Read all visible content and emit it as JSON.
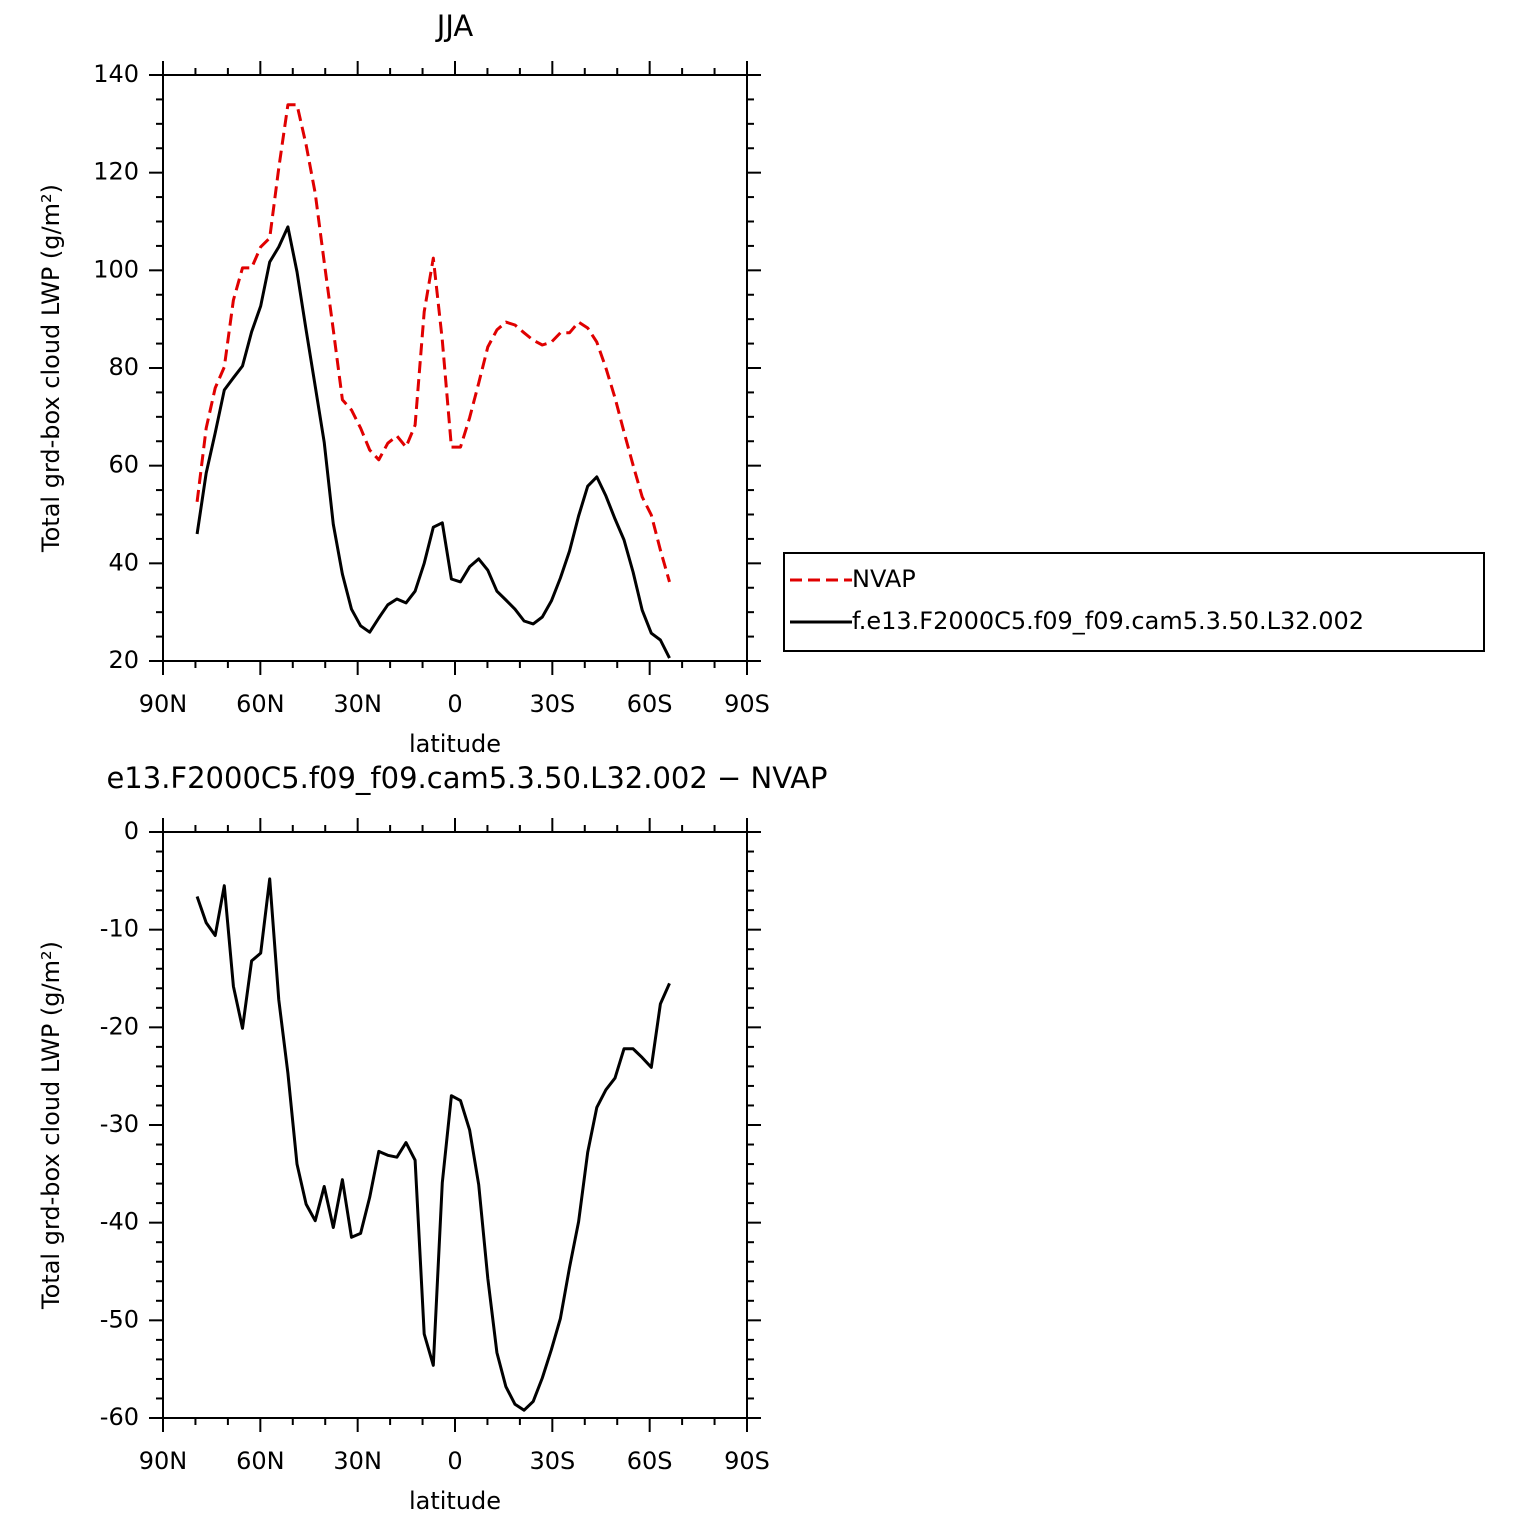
{
  "chart_data": [
    {
      "type": "line",
      "title": "JJA",
      "xlabel": "latitude",
      "ylabel": "Total grd-box cloud LWP (g/m²)",
      "x": [
        79.5,
        76.7,
        73.9,
        71.1,
        68.3,
        65.5,
        62.7,
        59.9,
        57.1,
        54.3,
        51.5,
        48.7,
        45.9,
        43.1,
        40.3,
        37.5,
        34.7,
        31.9,
        29.1,
        26.3,
        23.5,
        20.7,
        17.9,
        15.1,
        12.3,
        9.5,
        6.7,
        3.9,
        1.1,
        -1.7,
        -4.5,
        -7.3,
        -10.1,
        -12.9,
        -15.7,
        -18.5,
        -21.3,
        -24.1,
        -26.9,
        -29.7,
        -32.5,
        -35.3,
        -38.1,
        -40.9,
        -43.7,
        -46.5,
        -49.3,
        -52.1,
        -54.9,
        -57.7,
        -60.5,
        -63.3,
        -66.1
      ],
      "series": [
        {
          "name": "NVAP",
          "color": "#e00000",
          "style": "dashed",
          "values": [
            52.6,
            67.7,
            75.9,
            80.2,
            93.9,
            100.5,
            100.5,
            104.8,
            106.6,
            121,
            133.9,
            133.9,
            125.7,
            115.8,
            101.7,
            87.8,
            73.5,
            71.4,
            67.7,
            63.2,
            61.2,
            64.6,
            66.1,
            63.8,
            68.3,
            91.5,
            102.5,
            85.7,
            63.8,
            63.8,
            69.8,
            76.9,
            84.3,
            87.8,
            89.4,
            88.8,
            87.2,
            85.7,
            84.7,
            85.3,
            87.2,
            87.2,
            89.4,
            88.2,
            85.3,
            80,
            73.9,
            66.9,
            60.1,
            53.6,
            49.9,
            42.7,
            36.2
          ]
        },
        {
          "name": "f.e13.F2000C5.f09_f09.cam5.3.50.L32.002",
          "color": "#000000",
          "style": "solid",
          "values": [
            46,
            58.5,
            66.7,
            75.5,
            78,
            80.4,
            87.4,
            92.7,
            101.7,
            104.8,
            108.9,
            99.7,
            87.8,
            76.3,
            64.8,
            48,
            37.8,
            30.6,
            27.2,
            25.9,
            28.8,
            31.5,
            32.7,
            31.9,
            34.3,
            40,
            47.4,
            48.3,
            36.8,
            36.2,
            39.3,
            40.9,
            38.6,
            34.3,
            32.5,
            30.6,
            28.2,
            27.6,
            29,
            32.3,
            37,
            42.5,
            49.7,
            55.8,
            57.7,
            53.8,
            49.1,
            44.8,
            38.2,
            30.4,
            25.7,
            24.3,
            20.6
          ]
        }
      ],
      "xlim": [
        90,
        -90
      ],
      "xticks": [
        {
          "value": 90,
          "label": "90N"
        },
        {
          "value": 60,
          "label": "60N"
        },
        {
          "value": 30,
          "label": "30N"
        },
        0,
        {
          "value": -30,
          "label": "30S"
        },
        {
          "value": -60,
          "label": "60S"
        },
        {
          "value": -90,
          "label": "90S"
        }
      ],
      "ylim": [
        20,
        140
      ],
      "yticks": [
        20,
        40,
        60,
        80,
        100,
        120,
        140
      ],
      "x_minor_divisions": 3,
      "y_minor_divisions": 4,
      "legend": "right"
    },
    {
      "type": "line",
      "title": "e13.F2000C5.f09_f09.cam5.3.50.L32.002 − NVAP",
      "xlabel": "latitude",
      "ylabel": "Total grd-box cloud LWP (g/m²)",
      "x": [
        79.5,
        76.7,
        73.9,
        71.1,
        68.3,
        65.5,
        62.7,
        59.9,
        57.1,
        54.3,
        51.5,
        48.7,
        45.9,
        43.1,
        40.3,
        37.5,
        34.7,
        31.9,
        29.1,
        26.3,
        23.5,
        20.7,
        17.9,
        15.1,
        12.3,
        9.5,
        6.7,
        3.9,
        1.1,
        -1.7,
        -4.5,
        -7.3,
        -10.1,
        -12.9,
        -15.7,
        -18.5,
        -21.3,
        -24.1,
        -26.9,
        -29.7,
        -32.5,
        -35.3,
        -38.1,
        -40.9,
        -43.7,
        -46.5,
        -49.3,
        -52.1,
        -54.9,
        -57.7,
        -60.5,
        -63.3,
        -66.1
      ],
      "values": [
        -6.6,
        -9.3,
        -10.6,
        -5.5,
        -15.8,
        -20.1,
        -13.2,
        -12.4,
        -4.8,
        -17.2,
        -24.7,
        -34,
        -38.1,
        -39.8,
        -36.3,
        -40.5,
        -35.6,
        -41.5,
        -41.1,
        -37.4,
        -32.7,
        -33.1,
        -33.3,
        -31.8,
        -33.6,
        -51.4,
        -54.6,
        -35.9,
        -27,
        -27.5,
        -30.5,
        -36.1,
        -45.7,
        -53.3,
        -56.8,
        -58.6,
        -59.2,
        -58.3,
        -55.9,
        -53,
        -49.8,
        -44.6,
        -39.9,
        -32.8,
        -28.2,
        -26.4,
        -25.2,
        -22.2,
        -22.2,
        -23.1,
        -24.1,
        -17.6,
        -15.5
      ],
      "color": "#000000",
      "xlim": [
        90,
        -90
      ],
      "xticks": [
        {
          "value": 90,
          "label": "90N"
        },
        {
          "value": 60,
          "label": "60N"
        },
        {
          "value": 30,
          "label": "30N"
        },
        0,
        {
          "value": -30,
          "label": "30S"
        },
        {
          "value": -60,
          "label": "60S"
        },
        {
          "value": -90,
          "label": "90S"
        }
      ],
      "ylim": [
        -60,
        0
      ],
      "yticks": [
        -60,
        -50,
        -40,
        -30,
        -20,
        -10,
        0
      ],
      "x_minor_divisions": 3,
      "y_minor_divisions": 5
    }
  ]
}
